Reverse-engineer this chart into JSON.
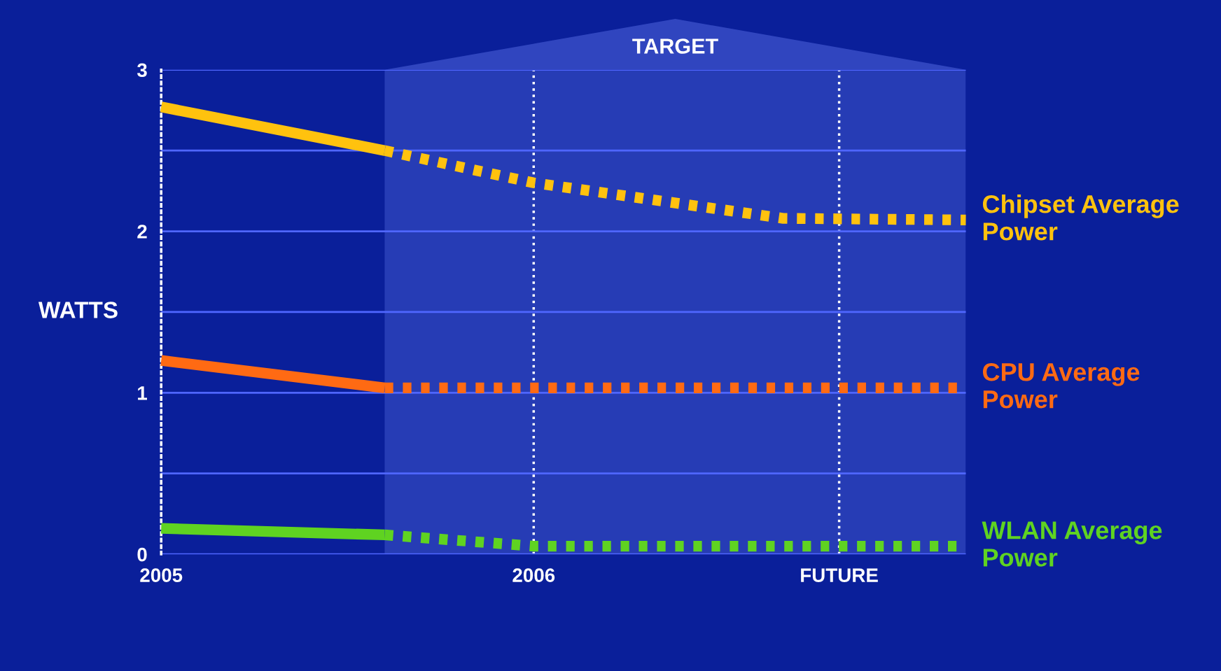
{
  "chart_data": {
    "type": "line",
    "ylabel": "WATTS",
    "xlim": [
      2005,
      2007.16
    ],
    "xticks": [
      2005,
      2006,
      {
        "value": 2006.82,
        "label": "FUTURE"
      }
    ],
    "ylim": [
      0,
      3
    ],
    "yticks": [
      0,
      {
        "value": 0.5,
        "label": null
      },
      1,
      {
        "value": 1.5,
        "label": null
      },
      2,
      {
        "value": 2.5,
        "label": null
      },
      3
    ],
    "grid": true,
    "legend": false,
    "marker": "none",
    "bands": [
      {
        "axis": "x",
        "from": 2005.6,
        "to": 2007.16,
        "label": "TARGET",
        "color": "#4a5fd8"
      }
    ],
    "series": [
      {
        "color": "#ffc20e",
        "line_style": "solid",
        "x": [
          2005,
          2005.6
        ],
        "values": [
          2.77,
          2.5
        ]
      },
      {
        "name": "Chipset Average Power",
        "color": "#ffc20e",
        "line_style": "dotted",
        "x": [
          2005.6,
          2006,
          2006.67,
          2007.16
        ],
        "values": [
          2.5,
          2.3,
          2.08,
          2.07
        ]
      },
      {
        "color": "#ff6a13",
        "line_style": "solid",
        "x": [
          2005,
          2005.6
        ],
        "values": [
          1.2,
          1.03
        ]
      },
      {
        "name": "CPU Average Power",
        "color": "#ff6a13",
        "line_style": "dotted",
        "x": [
          2005.6,
          2007.16
        ],
        "values": [
          1.03,
          1.03
        ]
      },
      {
        "color": "#5fd321",
        "line_style": "solid",
        "x": [
          2005,
          2005.6
        ],
        "values": [
          0.16,
          0.12
        ]
      },
      {
        "name": "WLAN Average Power",
        "color": "#5fd321",
        "line_style": "dotted",
        "x": [
          2005.6,
          2006,
          2007.16
        ],
        "values": [
          0.12,
          0.05,
          0.05
        ]
      }
    ]
  }
}
